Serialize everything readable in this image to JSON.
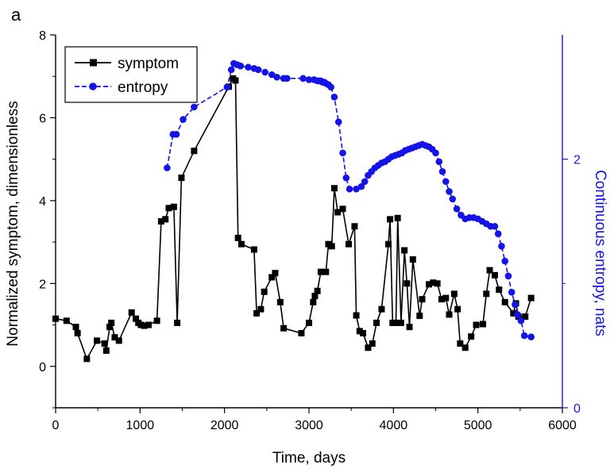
{
  "panel_label": "a",
  "colors": {
    "symptom": "#000000",
    "entropy": "#1414e6",
    "axis_left": "#000000",
    "axis_right": "#1414e6"
  },
  "chart_data": {
    "type": "line",
    "xlabel": "Time, days",
    "ylabel": "Normalized symptom, dimensionless",
    "y2label": "Continuous entropy, nats",
    "xlim": [
      0,
      6000
    ],
    "ylim": [
      -1,
      8
    ],
    "y2lim": [
      0,
      3.0
    ],
    "xticks": [
      "0",
      "1000",
      "2000",
      "3000",
      "4000",
      "5000",
      "6000"
    ],
    "yticks": [
      "0",
      "2",
      "4",
      "6",
      "8"
    ],
    "y2ticks": [
      "0",
      "2"
    ],
    "grid": false,
    "legend_position": "top-left",
    "series": [
      {
        "name": "symptom",
        "axis": "left",
        "marker": "square",
        "line": "solid",
        "x": [
          0,
          130,
          240,
          260,
          370,
          490,
          580,
          600,
          640,
          660,
          700,
          750,
          900,
          950,
          980,
          1010,
          1050,
          1100,
          1200,
          1250,
          1300,
          1340,
          1400,
          1440,
          1490,
          1640,
          2050,
          2100,
          2130,
          2160,
          2200,
          2350,
          2380,
          2430,
          2470,
          2560,
          2600,
          2660,
          2700,
          2910,
          3000,
          3050,
          3070,
          3100,
          3140,
          3200,
          3230,
          3270,
          3300,
          3340,
          3400,
          3470,
          3540,
          3560,
          3600,
          3640,
          3700,
          3750,
          3800,
          3860,
          3940,
          3960,
          3990,
          4030,
          4050,
          4090,
          4130,
          4160,
          4190,
          4230,
          4310,
          4340,
          4420,
          4470,
          4520,
          4570,
          4620,
          4660,
          4720,
          4760,
          4790,
          4850,
          4920,
          4980,
          5060,
          5100,
          5140,
          5200,
          5250,
          5320,
          5420,
          5450,
          5480,
          5560,
          5630
        ],
        "y": [
          1.15,
          1.1,
          0.95,
          0.8,
          0.18,
          0.62,
          0.55,
          0.38,
          0.95,
          1.05,
          0.7,
          0.62,
          1.3,
          1.15,
          1.05,
          1.0,
          0.98,
          1.0,
          1.1,
          3.5,
          3.55,
          3.82,
          3.85,
          1.05,
          4.55,
          5.2,
          6.75,
          6.95,
          6.9,
          3.1,
          2.95,
          2.82,
          1.28,
          1.38,
          1.8,
          2.15,
          2.25,
          1.55,
          0.92,
          0.8,
          1.05,
          1.55,
          1.7,
          1.82,
          2.28,
          2.28,
          2.95,
          2.9,
          4.3,
          3.72,
          3.8,
          2.95,
          3.38,
          1.23,
          0.85,
          0.8,
          0.45,
          0.55,
          1.05,
          1.38,
          2.95,
          3.55,
          1.05,
          1.05,
          3.58,
          1.05,
          2.8,
          2.0,
          0.95,
          2.58,
          1.22,
          1.62,
          1.98,
          2.02,
          2.0,
          1.62,
          1.65,
          1.25,
          1.75,
          1.38,
          0.55,
          0.45,
          0.72,
          1.0,
          1.02,
          1.75,
          2.32,
          2.2,
          1.85,
          1.55,
          1.28,
          1.52,
          1.2,
          1.2,
          1.65
        ]
      },
      {
        "name": "entropy",
        "axis": "right",
        "marker": "circle",
        "line": "dashed",
        "x": [
          1320,
          1390,
          1430,
          1510,
          1640,
          2030,
          2080,
          2110,
          2150,
          2190,
          2280,
          2350,
          2400,
          2480,
          2560,
          2620,
          2700,
          2740,
          2930,
          3000,
          3060,
          3100,
          3120,
          3140,
          3160,
          3180,
          3200,
          3230,
          3260,
          3300,
          3350,
          3400,
          3440,
          3480,
          3560,
          3620,
          3660,
          3700,
          3740,
          3780,
          3820,
          3860,
          3900,
          3940,
          3980,
          4020,
          4060,
          4100,
          4140,
          4180,
          4220,
          4260,
          4300,
          4340,
          4380,
          4420,
          4460,
          4500,
          4540,
          4580,
          4620,
          4660,
          4700,
          4750,
          4800,
          4850,
          4900,
          4950,
          5000,
          5050,
          5100,
          5150,
          5200,
          5240,
          5280,
          5320,
          5360,
          5400,
          5440,
          5470,
          5510,
          5550,
          5630
        ],
        "y": [
          1.93,
          2.2,
          2.2,
          2.32,
          2.42,
          2.58,
          2.72,
          2.77,
          2.76,
          2.75,
          2.74,
          2.73,
          2.72,
          2.7,
          2.68,
          2.66,
          2.65,
          2.65,
          2.65,
          2.64,
          2.64,
          2.63,
          2.63,
          2.63,
          2.62,
          2.62,
          2.61,
          2.6,
          2.58,
          2.5,
          2.3,
          2.05,
          1.85,
          1.76,
          1.76,
          1.78,
          1.82,
          1.87,
          1.9,
          1.93,
          1.95,
          1.97,
          1.98,
          2.0,
          2.02,
          2.03,
          2.04,
          2.05,
          2.07,
          2.08,
          2.09,
          2.1,
          2.11,
          2.12,
          2.11,
          2.1,
          2.08,
          2.05,
          1.98,
          1.9,
          1.82,
          1.74,
          1.68,
          1.6,
          1.55,
          1.52,
          1.53,
          1.53,
          1.52,
          1.5,
          1.48,
          1.46,
          1.46,
          1.4,
          1.3,
          1.18,
          1.06,
          0.93,
          0.83,
          0.75,
          0.7,
          0.58,
          0.57
        ]
      }
    ]
  }
}
